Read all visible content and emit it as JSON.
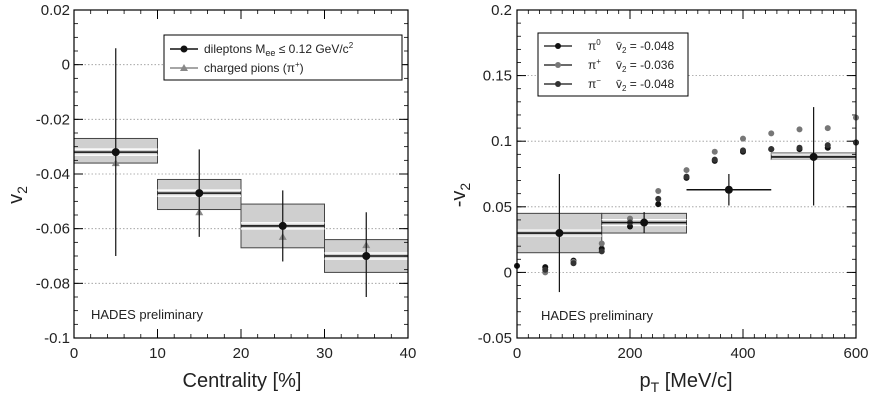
{
  "chart_data": [
    {
      "type": "scatter",
      "xlabel": "Centrality [%]",
      "ylabel": "v",
      "ylabel_sub": "2",
      "xlim": [
        0,
        40
      ],
      "ylim": [
        -0.1,
        0.02
      ],
      "x_ticks": [
        "0",
        "10",
        "20",
        "30",
        "40"
      ],
      "y_ticks": [
        "0.02",
        "0",
        "-0.02",
        "-0.04",
        "-0.06",
        "-0.08",
        "-0.1"
      ],
      "grid": "horizontal dotted",
      "legend_position": "top-right",
      "annotation": "HADES preliminary",
      "series": [
        {
          "name": "dileptons M",
          "name_sub": "ee",
          "name_rest": " ≤ 0.12 GeV/c",
          "name_sup": "2",
          "color": "#111111",
          "marker": "circle",
          "points": [
            {
              "x": 5,
              "y": -0.032,
              "yerr_lo": -0.07,
              "yerr_hi": 0.006,
              "bin": [
                0,
                10
              ],
              "sys": [
                -0.036,
                -0.027
              ]
            },
            {
              "x": 15,
              "y": -0.047,
              "yerr_lo": -0.063,
              "yerr_hi": -0.031,
              "bin": [
                10,
                20
              ],
              "sys": [
                -0.053,
                -0.042
              ]
            },
            {
              "x": 25,
              "y": -0.059,
              "yerr_lo": -0.072,
              "yerr_hi": -0.046,
              "bin": [
                20,
                30
              ],
              "sys": [
                -0.067,
                -0.051
              ]
            },
            {
              "x": 35,
              "y": -0.07,
              "yerr_lo": -0.085,
              "yerr_hi": -0.054,
              "bin": [
                30,
                40
              ],
              "sys": [
                -0.076,
                -0.064
              ]
            }
          ]
        },
        {
          "name": "charged pions (π",
          "name_sup": "+",
          "name_rest": ")",
          "color": "#888888",
          "marker": "triangle",
          "points": [
            {
              "x": 5,
              "y": -0.036
            },
            {
              "x": 15,
              "y": -0.054
            },
            {
              "x": 25,
              "y": -0.063
            },
            {
              "x": 35,
              "y": -0.066
            }
          ]
        }
      ]
    },
    {
      "type": "scatter",
      "xlabel": "p",
      "xlabel_sub": "T",
      "xlabel_rest": " [MeV/c]",
      "ylabel": "-v",
      "ylabel_sub": "2",
      "xlim": [
        0,
        600
      ],
      "ylim": [
        -0.05,
        0.2
      ],
      "x_ticks": [
        "0",
        "200",
        "400",
        "600"
      ],
      "y_ticks": [
        "0.2",
        "0.15",
        "0.1",
        "0.05",
        "0",
        "-0.05"
      ],
      "grid": "horizontal dotted",
      "legend_position": "top-left",
      "annotation": "HADES preliminary",
      "legend": [
        {
          "symbol": "π",
          "sup": "0",
          "mean_label": "v̄",
          "mean_sub": "2",
          "mean_value": " = -0.048",
          "color": "#111111"
        },
        {
          "symbol": "π",
          "sup": "+",
          "mean_label": "v̄",
          "mean_sub": "2",
          "mean_value": " = -0.036",
          "color": "#777777"
        },
        {
          "symbol": "π",
          "sup": "−",
          "mean_label": "v̄",
          "mean_sub": "2",
          "mean_value": " = -0.048",
          "color": "#333333"
        }
      ],
      "dileptons": [
        {
          "x": 75,
          "y": 0.03,
          "yerr_lo": -0.015,
          "yerr_hi": 0.075,
          "bin": [
            0,
            150
          ],
          "sys": [
            0.015,
            0.045
          ]
        },
        {
          "x": 225,
          "y": 0.038,
          "yerr_lo": 0.03,
          "yerr_hi": 0.046,
          "bin": [
            150,
            300
          ],
          "sys": [
            0.03,
            0.045
          ]
        },
        {
          "x": 375,
          "y": 0.063,
          "yerr_lo": 0.051,
          "yerr_hi": 0.075,
          "bin": [
            300,
            450
          ],
          "sys": null
        },
        {
          "x": 525,
          "y": 0.088,
          "yerr_lo": 0.051,
          "yerr_hi": 0.126,
          "bin": [
            450,
            600
          ],
          "sys": [
            0.086,
            0.091
          ]
        }
      ],
      "pion_series": [
        {
          "name": "π0",
          "color": "#111111",
          "points": [
            [
              0,
              0.005
            ],
            [
              50,
              0.004
            ],
            [
              100,
              0.009
            ],
            [
              150,
              0.018
            ],
            [
              200,
              0.035
            ],
            [
              250,
              0.052
            ],
            [
              300,
              0.072
            ],
            [
              350,
              0.085
            ],
            [
              400,
              0.092
            ],
            [
              450,
              0.094
            ],
            [
              500,
              0.094
            ],
            [
              550,
              0.095
            ],
            [
              600,
              0.099
            ]
          ]
        },
        {
          "name": "π+",
          "color": "#777777",
          "points": [
            [
              50,
              0.0
            ],
            [
              100,
              0.008
            ],
            [
              150,
              0.022
            ],
            [
              200,
              0.041
            ],
            [
              250,
              0.062
            ],
            [
              300,
              0.078
            ],
            [
              350,
              0.092
            ],
            [
              400,
              0.102
            ],
            [
              450,
              0.106
            ],
            [
              500,
              0.109
            ],
            [
              550,
              0.11
            ],
            [
              600,
              0.118
            ]
          ]
        },
        {
          "name": "π−",
          "color": "#333333",
          "points": [
            [
              50,
              0.002
            ],
            [
              100,
              0.007
            ],
            [
              150,
              0.016
            ],
            [
              200,
              0.038
            ],
            [
              250,
              0.056
            ],
            [
              300,
              0.073
            ],
            [
              350,
              0.086
            ],
            [
              400,
              0.093
            ],
            [
              450,
              0.094
            ],
            [
              500,
              0.095
            ],
            [
              550,
              0.097
            ],
            [
              600,
              0.099
            ]
          ]
        }
      ]
    }
  ]
}
